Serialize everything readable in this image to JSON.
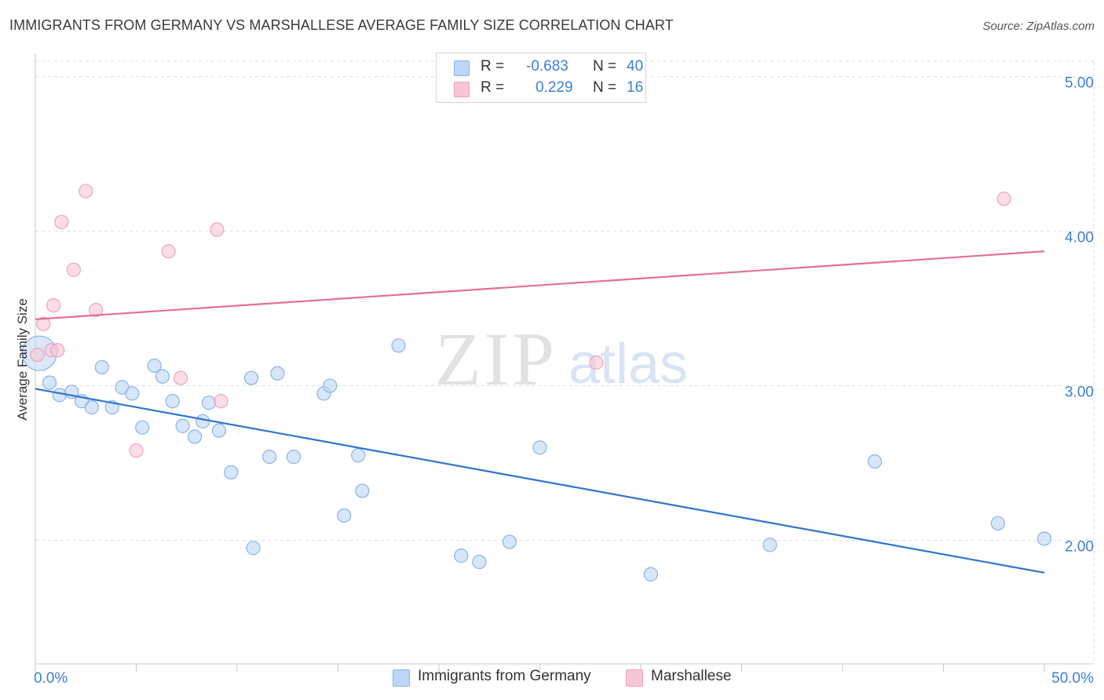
{
  "header": {
    "title": "IMMIGRANTS FROM GERMANY VS MARSHALLESE AVERAGE FAMILY SIZE CORRELATION CHART",
    "source": "Source: ZipAtlas.com"
  },
  "watermark": {
    "zip": "ZIP",
    "atlas": "atlas"
  },
  "legend": {
    "r_label": "R =",
    "n_label": "N =",
    "entries": [
      {
        "r": "-0.683",
        "n": "40"
      },
      {
        "r": "0.229",
        "n": "16"
      }
    ]
  },
  "colors": {
    "blue_fill": "#bcd6f5",
    "blue_stroke": "#8ab4e8",
    "blue_line": "#2f73d0",
    "pink_fill": "#f8c6d6",
    "pink_stroke": "#eea3bc",
    "pink_line": "#e46f96",
    "tick_text": "#3f7fd0",
    "grid": "#dddddd"
  },
  "chart_data": {
    "type": "scatter",
    "title": "IMMIGRANTS FROM GERMANY VS MARSHALLESE AVERAGE FAMILY SIZE CORRELATION CHART",
    "xlabel": "",
    "ylabel": "Average Family Size",
    "xlim": [
      0,
      50
    ],
    "ylim": [
      1.2,
      5.1
    ],
    "x_tick_labels": [
      "0.0%",
      "50.0%"
    ],
    "y_ticks": [
      2.0,
      3.0,
      4.0,
      5.0
    ],
    "y_tick_labels": [
      "2.00",
      "3.00",
      "4.00",
      "5.00"
    ],
    "grid": true,
    "legend_position": "top-center",
    "series": [
      {
        "name": "Immigrants from Germany",
        "color": "#bcd6f5",
        "trend": {
          "x": [
            0,
            50
          ],
          "y": [
            2.98,
            1.79
          ]
        },
        "points": [
          {
            "x": 0.2,
            "y": 3.21,
            "big": true
          },
          {
            "x": 0.7,
            "y": 3.02
          },
          {
            "x": 1.2,
            "y": 2.94
          },
          {
            "x": 1.8,
            "y": 2.96
          },
          {
            "x": 2.3,
            "y": 2.9
          },
          {
            "x": 2.8,
            "y": 2.86
          },
          {
            "x": 3.3,
            "y": 3.12
          },
          {
            "x": 3.8,
            "y": 2.86
          },
          {
            "x": 4.3,
            "y": 2.99
          },
          {
            "x": 4.8,
            "y": 2.95
          },
          {
            "x": 5.3,
            "y": 2.73
          },
          {
            "x": 5.9,
            "y": 3.13
          },
          {
            "x": 6.3,
            "y": 3.06
          },
          {
            "x": 6.8,
            "y": 2.9
          },
          {
            "x": 7.3,
            "y": 2.74
          },
          {
            "x": 7.9,
            "y": 2.67
          },
          {
            "x": 8.3,
            "y": 2.77
          },
          {
            "x": 8.6,
            "y": 2.89
          },
          {
            "x": 9.1,
            "y": 2.71
          },
          {
            "x": 9.7,
            "y": 2.44
          },
          {
            "x": 10.7,
            "y": 3.05
          },
          {
            "x": 11.6,
            "y": 2.54
          },
          {
            "x": 10.8,
            "y": 1.95
          },
          {
            "x": 12.0,
            "y": 3.08
          },
          {
            "x": 12.8,
            "y": 2.54
          },
          {
            "x": 14.3,
            "y": 2.95
          },
          {
            "x": 14.6,
            "y": 3.0
          },
          {
            "x": 15.3,
            "y": 2.16
          },
          {
            "x": 16.0,
            "y": 2.55
          },
          {
            "x": 16.2,
            "y": 2.32
          },
          {
            "x": 18.0,
            "y": 3.26
          },
          {
            "x": 21.1,
            "y": 1.9
          },
          {
            "x": 22.0,
            "y": 1.86
          },
          {
            "x": 23.5,
            "y": 1.99
          },
          {
            "x": 25.0,
            "y": 2.6
          },
          {
            "x": 30.5,
            "y": 1.78
          },
          {
            "x": 36.4,
            "y": 1.97
          },
          {
            "x": 41.6,
            "y": 2.51
          },
          {
            "x": 47.7,
            "y": 2.11
          },
          {
            "x": 50.0,
            "y": 2.01
          }
        ]
      },
      {
        "name": "Marshallese",
        "color": "#f8c6d6",
        "trend": {
          "x": [
            0,
            50
          ],
          "y": [
            3.43,
            3.87
          ]
        },
        "points": [
          {
            "x": 0.1,
            "y": 3.2
          },
          {
            "x": 0.4,
            "y": 3.4
          },
          {
            "x": 0.8,
            "y": 3.23
          },
          {
            "x": 0.9,
            "y": 3.52
          },
          {
            "x": 1.1,
            "y": 3.23
          },
          {
            "x": 1.3,
            "y": 4.06
          },
          {
            "x": 1.9,
            "y": 3.75
          },
          {
            "x": 2.5,
            "y": 4.26
          },
          {
            "x": 3.0,
            "y": 3.49
          },
          {
            "x": 5.0,
            "y": 2.58
          },
          {
            "x": 6.6,
            "y": 3.87
          },
          {
            "x": 7.2,
            "y": 3.05
          },
          {
            "x": 9.0,
            "y": 4.01
          },
          {
            "x": 9.2,
            "y": 2.9
          },
          {
            "x": 27.8,
            "y": 3.15
          },
          {
            "x": 48.0,
            "y": 4.21
          }
        ]
      }
    ]
  }
}
